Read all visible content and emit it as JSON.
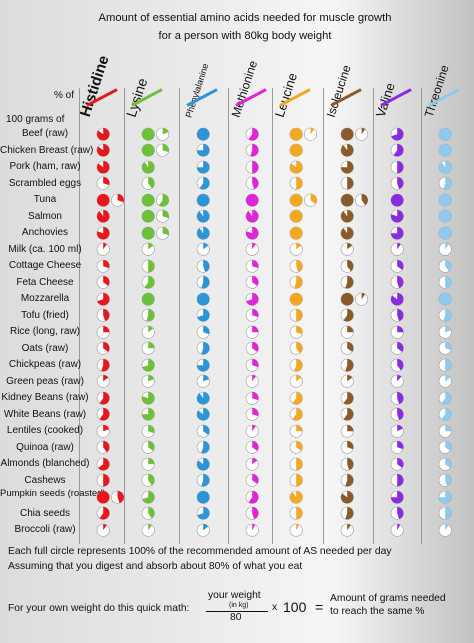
{
  "title": {
    "line1": "Amount of essential amino acids needed for muscle growth",
    "line2": "for a person with 80kg body weight"
  },
  "header": {
    "percent_of": "% of",
    "per_100g": "100 grams of"
  },
  "colors": {
    "histidine": "#e8171c",
    "lysine": "#6cc03a",
    "phenylalanine": "#2b95d8",
    "methionine": "#e024d8",
    "leucine": "#f5a623",
    "isoleucine": "#8b5a2b",
    "valine": "#8a2be2",
    "threonine": "#8ec9ee"
  },
  "columns": [
    {
      "key": "histidine",
      "label": "Histidine",
      "size": "15px",
      "weight": "bold"
    },
    {
      "key": "lysine",
      "label": "Lysine",
      "size": "14px",
      "weight": "normal"
    },
    {
      "key": "phenylalanine",
      "label": "Phenylalanine",
      "size": "9px",
      "weight": "normal"
    },
    {
      "key": "methionine",
      "label": "Methionine",
      "size": "12px",
      "weight": "normal"
    },
    {
      "key": "leucine",
      "label": "Leucine",
      "size": "13px",
      "weight": "normal"
    },
    {
      "key": "isoleucine",
      "label": "Isoleucine",
      "size": "12px",
      "weight": "normal"
    },
    {
      "key": "valine",
      "label": "Valine",
      "size": "13px",
      "weight": "normal"
    },
    {
      "key": "threonine",
      "label": "Threonine",
      "size": "12px",
      "weight": "normal"
    }
  ],
  "foods": [
    {
      "name": "Beef (raw)",
      "values": [
        [
          0.85
        ],
        [
          1,
          0.2
        ],
        [
          1
        ],
        [
          0.6
        ],
        [
          1,
          0.1
        ],
        [
          1,
          0.1
        ],
        [
          0.7
        ],
        [
          1
        ]
      ]
    },
    {
      "name": "Chicken Breast (raw)",
      "values": [
        [
          0.85
        ],
        [
          1,
          0.3
        ],
        [
          0.75
        ],
        [
          0.55
        ],
        [
          1
        ],
        [
          0.9
        ],
        [
          0.6
        ],
        [
          1
        ]
      ]
    },
    {
      "name": "Pork (ham, raw)",
      "values": [
        [
          0.85
        ],
        [
          0.9
        ],
        [
          0.75
        ],
        [
          0.5
        ],
        [
          0.85
        ],
        [
          0.75
        ],
        [
          0.5
        ],
        [
          0.9
        ]
      ]
    },
    {
      "name": "Scrambled eggs",
      "values": [
        [
          0.3
        ],
        [
          0.4
        ],
        [
          0.6
        ],
        [
          0.45
        ],
        [
          0.5
        ],
        [
          0.5
        ],
        [
          0.45
        ],
        [
          0.55
        ]
      ]
    },
    {
      "name": "Tuna",
      "values": [
        [
          1,
          0.3
        ],
        [
          1,
          0.6
        ],
        [
          1
        ],
        [
          1
        ],
        [
          1,
          0.35
        ],
        [
          1,
          0.4
        ],
        [
          1
        ],
        [
          1
        ]
      ]
    },
    {
      "name": "Salmon",
      "values": [
        [
          0.9
        ],
        [
          1,
          0.3
        ],
        [
          0.9
        ],
        [
          0.9
        ],
        [
          1
        ],
        [
          0.9
        ],
        [
          0.8
        ],
        [
          1
        ]
      ]
    },
    {
      "name": "Anchovies",
      "values": [
        [
          0.8
        ],
        [
          1,
          0.3
        ],
        [
          0.9
        ],
        [
          0.8
        ],
        [
          1
        ],
        [
          0.9
        ],
        [
          0.75
        ],
        [
          1
        ]
      ]
    },
    {
      "name": "Milk (ca. 100 ml)",
      "values": [
        [
          0.1
        ],
        [
          0.15
        ],
        [
          0.15
        ],
        [
          0.1
        ],
        [
          0.15
        ],
        [
          0.15
        ],
        [
          0.1
        ],
        [
          0.1
        ]
      ]
    },
    {
      "name": "Cottage Cheese",
      "values": [
        [
          0.3
        ],
        [
          0.5
        ],
        [
          0.45
        ],
        [
          0.3
        ],
        [
          0.45
        ],
        [
          0.4
        ],
        [
          0.35
        ],
        [
          0.4
        ]
      ]
    },
    {
      "name": "Feta Cheese",
      "values": [
        [
          0.35
        ],
        [
          0.6
        ],
        [
          0.55
        ],
        [
          0.35
        ],
        [
          0.55
        ],
        [
          0.55
        ],
        [
          0.45
        ],
        [
          0.5
        ]
      ]
    },
    {
      "name": "Mozzarella",
      "values": [
        [
          0.7
        ],
        [
          1
        ],
        [
          1
        ],
        [
          0.7
        ],
        [
          1
        ],
        [
          1,
          0.1
        ],
        [
          0.85
        ],
        [
          1
        ]
      ]
    },
    {
      "name": "Tofu (fried)",
      "values": [
        [
          0.45
        ],
        [
          0.55
        ],
        [
          0.7
        ],
        [
          0.3
        ],
        [
          0.5
        ],
        [
          0.6
        ],
        [
          0.45
        ],
        [
          0.55
        ]
      ]
    },
    {
      "name": "Rice (long, raw)",
      "values": [
        [
          0.25
        ],
        [
          0.15
        ],
        [
          0.3
        ],
        [
          0.25
        ],
        [
          0.3
        ],
        [
          0.25
        ],
        [
          0.25
        ],
        [
          0.2
        ]
      ]
    },
    {
      "name": "Oats (raw)",
      "values": [
        [
          0.35
        ],
        [
          0.25
        ],
        [
          0.55
        ],
        [
          0.35
        ],
        [
          0.4
        ],
        [
          0.35
        ],
        [
          0.35
        ],
        [
          0.3
        ]
      ]
    },
    {
      "name": "Chickpeas (raw)",
      "values": [
        [
          0.55
        ],
        [
          0.7
        ],
        [
          0.75
        ],
        [
          0.3
        ],
        [
          0.55
        ],
        [
          0.55
        ],
        [
          0.4
        ],
        [
          0.5
        ]
      ]
    },
    {
      "name": "Green peas (raw)",
      "values": [
        [
          0.15
        ],
        [
          0.2
        ],
        [
          0.2
        ],
        [
          0.1
        ],
        [
          0.15
        ],
        [
          0.15
        ],
        [
          0.12
        ],
        [
          0.15
        ]
      ]
    },
    {
      "name": "Kidney Beans (raw)",
      "values": [
        [
          0.6
        ],
        [
          0.8
        ],
        [
          0.9
        ],
        [
          0.3
        ],
        [
          0.6
        ],
        [
          0.6
        ],
        [
          0.45
        ],
        [
          0.6
        ]
      ]
    },
    {
      "name": "White Beans (raw)",
      "values": [
        [
          0.6
        ],
        [
          0.75
        ],
        [
          0.85
        ],
        [
          0.3
        ],
        [
          0.6
        ],
        [
          0.6
        ],
        [
          0.45
        ],
        [
          0.6
        ]
      ]
    },
    {
      "name": "Lentiles (cooked)",
      "values": [
        [
          0.2
        ],
        [
          0.3
        ],
        [
          0.35
        ],
        [
          0.1
        ],
        [
          0.25
        ],
        [
          0.25
        ],
        [
          0.18
        ],
        [
          0.25
        ]
      ]
    },
    {
      "name": "Quinoa (raw)",
      "values": [
        [
          0.4
        ],
        [
          0.35
        ],
        [
          0.55
        ],
        [
          0.35
        ],
        [
          0.35
        ],
        [
          0.3
        ],
        [
          0.3
        ],
        [
          0.35
        ]
      ]
    },
    {
      "name": "Almonds (blanched)",
      "values": [
        [
          0.65
        ],
        [
          0.25
        ],
        [
          0.85
        ],
        [
          0.15
        ],
        [
          0.5
        ],
        [
          0.45
        ],
        [
          0.35
        ],
        [
          0.35
        ]
      ]
    },
    {
      "name": "Cashews",
      "values": [
        [
          0.5
        ],
        [
          0.4
        ],
        [
          0.55
        ],
        [
          0.35
        ],
        [
          0.5
        ],
        [
          0.55
        ],
        [
          0.5
        ],
        [
          0.45
        ]
      ]
    },
    {
      "name": "Pumpkin seeds (roasted)",
      "values": [
        [
          1,
          0.45
        ],
        [
          0.7
        ],
        [
          1
        ],
        [
          0.6
        ],
        [
          0.9
        ],
        [
          0.85
        ],
        [
          0.75
        ],
        [
          0.75
        ]
      ]
    },
    {
      "name": "Chia seeds",
      "values": [
        [
          0.6
        ],
        [
          0.4
        ],
        [
          0.7
        ],
        [
          0.45
        ],
        [
          0.5
        ],
        [
          0.55
        ],
        [
          0.45
        ],
        [
          0.5
        ]
      ]
    },
    {
      "name": "Broccoli (raw)",
      "values": [
        [
          0.1
        ],
        [
          0.1
        ],
        [
          0.15
        ],
        [
          0.08
        ],
        [
          0.08
        ],
        [
          0.1
        ],
        [
          0.08
        ],
        [
          0.1
        ]
      ]
    }
  ],
  "notes": {
    "line1": "Each full circle represents 100% of the recommended amount of AS needed per day",
    "line2": "Assuming that you digest and absorb about 80% of what you eat"
  },
  "formula": {
    "prefix": "For your own weight do this quick math:",
    "numerator": "your weight",
    "unit": "(in kg)",
    "denominator": "80",
    "times": "x",
    "hundred": "100",
    "equals": "=",
    "result_line1": "Amount of grams needed",
    "result_line2": "to reach the same %"
  }
}
